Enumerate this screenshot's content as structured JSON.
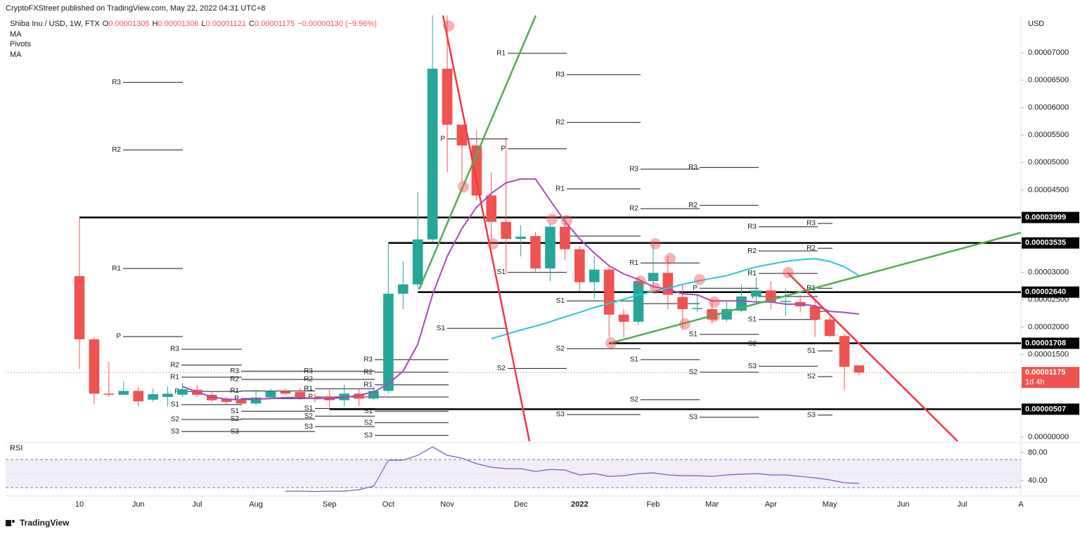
{
  "header": {
    "published": "CryptoFXStreet published on TradingView.com, May 22, 2022 04:31 UTC+8",
    "legend": [
      {
        "key": "O",
        "text": "0.00001305"
      },
      {
        "key": "H",
        "text": "0.00001306"
      },
      {
        "key": "L",
        "text": "0.00001121"
      },
      {
        "key": "C",
        "text": "0.00001175"
      }
    ],
    "change": "−0.00000130 (−9.96%)",
    "indicator": "Pivots"
  },
  "branding": "TradingView",
  "chart_data": {
    "type": "candlestick",
    "title": "Shiba Inu / USD, 1W, FTX",
    "categories": [
      "10",
      null,
      null,
      null,
      "Jun",
      null,
      null,
      null,
      "Jul",
      null,
      null,
      null,
      "Aug",
      null,
      null,
      null,
      null,
      "Sep",
      null,
      null,
      null,
      "Oct",
      null,
      null,
      null,
      "Nov",
      null,
      null,
      null,
      null,
      "Dec",
      null,
      null,
      null,
      "2022",
      null,
      null,
      null,
      null,
      "Feb",
      null,
      null,
      null,
      "Mar",
      null,
      null,
      null,
      "Apr",
      null,
      null,
      null,
      "May",
      null,
      null,
      null,
      null,
      "Jun",
      null,
      null,
      null,
      "Jul",
      null,
      null,
      null,
      "A"
    ],
    "open": [
      2.93e-05,
      1.78e-05,
      7.9e-06,
      7.7e-06,
      8.4e-06,
      6.8e-06,
      7.3e-06,
      7.7e-06,
      8.6e-06,
      7.7e-06,
      6.9e-06,
      6.7e-06,
      6.1e-06,
      7.2e-06,
      8.4e-06,
      8.2e-06,
      7.2e-06,
      7.4e-06,
      6.7e-06,
      7.9e-06,
      7e-06,
      8.4e-06,
      2.61e-05,
      2.78e-05,
      3.6e-05,
      6.71e-05,
      5.69e-05,
      5.31e-05,
      4.4e-05,
      3.92e-05,
      3.61e-05,
      3.66e-05,
      3.07e-05,
      3.83e-05,
      3.42e-05,
      2.82e-05,
      3.05e-05,
      2.23e-05,
      2.1e-05,
      2.84e-05,
      2.99e-05,
      2.55e-05,
      2.33e-05,
      2.33e-05,
      2.14e-05,
      2.3e-05,
      2.56e-05,
      2.67e-05,
      2.46e-05,
      2.46e-05,
      2.38e-05,
      2.14e-05,
      1.84e-05,
      1.305e-05,
      null,
      null,
      null,
      null,
      null,
      null,
      null,
      null,
      null,
      null,
      null
    ],
    "high": [
      3.98e-05,
      1.82e-05,
      1.37e-05,
      1.02e-05,
      9.2e-06,
      8.8e-06,
      9.2e-06,
      9.9e-06,
      9.5e-06,
      8.4e-06,
      7.3e-06,
      7.2e-06,
      8.6e-06,
      8.8e-06,
      8.8e-06,
      9e-06,
      7.9e-06,
      8.6e-06,
      9.5e-06,
      8.8e-06,
      9.2e-06,
      3.54e-05,
      3.2e-05,
      4.47e-05,
      7.68e-05,
      7.68e-05,
      5.69e-05,
      5.59e-05,
      4.82e-05,
      5.46e-05,
      3.86e-05,
      3.74e-05,
      3.89e-05,
      3.97e-05,
      3.48e-05,
      3.29e-05,
      3.1e-05,
      2.33e-05,
      2.91e-05,
      3.54e-05,
      3.29e-05,
      2.78e-05,
      2.59e-05,
      2.52e-05,
      2.46e-05,
      2.78e-05,
      2.91e-05,
      2.84e-05,
      2.71e-05,
      2.59e-05,
      2.52e-05,
      2.2e-05,
      1.88e-05,
      1.306e-05,
      null,
      null,
      null,
      null,
      null,
      null,
      null,
      null,
      null,
      null,
      null
    ],
    "low": [
      1.24e-05,
      6e-06,
      7.3e-06,
      7.7e-06,
      5.6e-06,
      6.4e-06,
      5.6e-06,
      7.3e-06,
      7.3e-06,
      6.4e-06,
      6e-06,
      5.8e-06,
      5.9e-06,
      6.9e-06,
      7.7e-06,
      6.7e-06,
      6.4e-06,
      5.4e-06,
      5.6e-06,
      5.6e-06,
      6.7e-06,
      7.9e-06,
      2.33e-05,
      2.71e-05,
      3.54e-05,
      4.82e-05,
      4.63e-05,
      4.31e-05,
      3.61e-05,
      2.97e-05,
      3.29e-05,
      3.01e-05,
      2.84e-05,
      3.23e-05,
      2.65e-05,
      2.52e-05,
      1.82e-05,
      1.82e-05,
      2.05e-05,
      2.71e-05,
      2.33e-05,
      1.95e-05,
      2.27e-05,
      2.07e-05,
      2.1e-05,
      2.27e-05,
      2.46e-05,
      2.33e-05,
      2.2e-05,
      2.27e-05,
      1.82e-05,
      1.82e-05,
      8.6e-06,
      1.121e-05,
      null,
      null,
      null,
      null,
      null,
      null,
      null,
      null,
      null,
      null,
      null
    ],
    "close": [
      1.78e-05,
      7.9e-06,
      7.7e-06,
      8.4e-06,
      6.5e-06,
      7.8e-06,
      7.9e-06,
      8.7e-06,
      7.7e-06,
      6.7e-06,
      6.4e-06,
      6.1e-06,
      7.2e-06,
      8.4e-06,
      7.9e-06,
      7.2e-06,
      6.9e-06,
      6.7e-06,
      7.9e-06,
      7e-06,
      8.4e-06,
      2.61e-05,
      2.78e-05,
      3.6e-05,
      6.71e-05,
      5.69e-05,
      5.31e-05,
      4.4e-05,
      3.92e-05,
      3.61e-05,
      3.65e-05,
      3.07e-05,
      3.83e-05,
      3.42e-05,
      2.82e-05,
      3.05e-05,
      2.23e-05,
      2.1e-05,
      2.84e-05,
      2.99e-05,
      2.59e-05,
      2.33e-05,
      2.35e-05,
      2.14e-05,
      2.33e-05,
      2.56e-05,
      2.67e-05,
      2.46e-05,
      2.48e-05,
      2.38e-05,
      2.14e-05,
      1.84e-05,
      1.28e-05,
      1.175e-05,
      null,
      null,
      null,
      null,
      null,
      null,
      null,
      null,
      null,
      null,
      null
    ],
    "up_color": "#26a69a",
    "down_color": "#ef5350",
    "series": [
      {
        "name": "MA",
        "color": "#ab47bc",
        "values": [
          null,
          null,
          null,
          null,
          null,
          null,
          null,
          9.2e-06,
          8.2e-06,
          7.3e-06,
          6.9e-06,
          6.8e-06,
          6.9e-06,
          7e-06,
          7.2e-06,
          7.2e-06,
          7e-06,
          7e-06,
          7.2e-06,
          7.6e-06,
          8.2e-06,
          9.7e-06,
          1.2e-05,
          1.69e-05,
          2.59e-05,
          3.29e-05,
          3.8e-05,
          4.19e-05,
          4.44e-05,
          4.63e-05,
          4.7e-05,
          4.7e-05,
          4.31e-05,
          3.93e-05,
          3.61e-05,
          3.35e-05,
          3.12e-05,
          2.97e-05,
          2.87e-05,
          2.74e-05,
          2.69e-05,
          2.61e-05,
          2.59e-05,
          2.48e-05,
          2.48e-05,
          2.48e-05,
          2.46e-05,
          2.46e-05,
          2.42e-05,
          2.42e-05,
          2.39e-05,
          2.29e-05,
          2.27e-05,
          2.24e-05,
          null,
          null,
          null,
          null,
          null,
          null,
          null,
          null,
          null,
          null,
          null
        ]
      },
      {
        "name": "MA",
        "color": "#26c6da",
        "values": [
          null,
          null,
          null,
          null,
          null,
          null,
          null,
          null,
          null,
          null,
          null,
          null,
          null,
          null,
          null,
          null,
          null,
          null,
          null,
          null,
          null,
          null,
          null,
          null,
          null,
          null,
          null,
          null,
          1.79e-05,
          1.87e-05,
          1.95e-05,
          2.02e-05,
          2.1e-05,
          2.19e-05,
          2.27e-05,
          2.36e-05,
          2.43e-05,
          2.51e-05,
          2.59e-05,
          2.65e-05,
          2.71e-05,
          2.78e-05,
          2.84e-05,
          2.89e-05,
          2.94e-05,
          3.02e-05,
          3.1e-05,
          3.15e-05,
          3.2e-05,
          3.23e-05,
          3.25e-05,
          3.2e-05,
          3.1e-05,
          2.94e-05,
          null,
          null,
          null,
          null,
          null,
          null,
          null,
          null,
          null,
          null,
          null
        ]
      }
    ],
    "ylim": [
      -7.7e-07,
      7.679e-05
    ],
    "y_axis_label": "USD",
    "yticks": [
      {
        "value": 0,
        "label": "0.00000000"
      },
      {
        "value": 1.5e-05,
        "label": "0.00001500"
      },
      {
        "value": 2e-05,
        "label": "0.00002000"
      },
      {
        "value": 2.5e-05,
        "label": "0.00002500"
      },
      {
        "value": 3e-05,
        "label": "0.00003000"
      },
      {
        "value": 4.5e-05,
        "label": "0.00004500"
      },
      {
        "value": 5e-05,
        "label": "0.00005000"
      },
      {
        "value": 5.5e-05,
        "label": "0.00005500"
      },
      {
        "value": 6e-05,
        "label": "0.00006000"
      },
      {
        "value": 6.5e-05,
        "label": "0.00006500"
      },
      {
        "value": 7e-05,
        "label": "0.00007000"
      }
    ],
    "levels": [
      {
        "value": 3.999e-05,
        "label": "0.00003999"
      },
      {
        "value": 3.535e-05,
        "label": "0.00003535"
      },
      {
        "value": 2.64e-05,
        "label": "0.00002640"
      },
      {
        "value": 1.708e-05,
        "label": "0.00001708"
      },
      {
        "value": 5.07e-06,
        "label": "0.00000507"
      }
    ],
    "last_price": {
      "value": 1.175e-05,
      "label": "0.00001175",
      "countdown": "1d 4h",
      "color": "#ef5350"
    },
    "pivots": [
      {
        "levels": [
          {
            "label": "R3",
            "value": 6.46e-05
          },
          {
            "label": "R2",
            "value": 5.23e-05
          },
          {
            "label": "R1",
            "value": 3.07e-05
          },
          {
            "label": "P",
            "value": 1.83e-05
          }
        ]
      },
      {
        "levels": [
          {
            "label": "R3",
            "value": 1.6e-05
          },
          {
            "label": "R2",
            "value": 1.31e-05
          },
          {
            "label": "R1",
            "value": 1.09e-05
          },
          {
            "label": "P",
            "value": 8.3e-06
          },
          {
            "label": "S1",
            "value": 5.9e-06
          },
          {
            "label": "S2",
            "value": 3.2e-06
          },
          {
            "label": "S3",
            "value": 1e-06
          }
        ]
      },
      {
        "levels": [
          {
            "label": "R3",
            "value": 1.2e-05
          },
          {
            "label": "R2",
            "value": 1.05e-05
          },
          {
            "label": "R1",
            "value": 8.4e-06
          },
          {
            "label": "P",
            "value": 7e-06
          },
          {
            "label": "S1",
            "value": 4.7e-06
          },
          {
            "label": "S2",
            "value": 3.3e-06
          },
          {
            "label": "S3",
            "value": 1e-06
          }
        ]
      },
      {
        "levels": [
          {
            "label": "R3",
            "value": 1.2e-05
          },
          {
            "label": "R2",
            "value": 1.05e-05
          },
          {
            "label": "R1",
            "value": 8.8e-06
          },
          {
            "label": "P",
            "value": 7.3e-06
          },
          {
            "label": "S1",
            "value": 5.2e-06
          },
          {
            "label": "S2",
            "value": 3.8e-06
          },
          {
            "label": "S3",
            "value": 1.9e-06
          }
        ]
      },
      {
        "levels": [
          {
            "label": "R3",
            "value": 1.41e-05
          },
          {
            "label": "R2",
            "value": 1.18e-05
          },
          {
            "label": "R1",
            "value": 9.5e-06
          },
          {
            "label": "P",
            "value": 7.3e-06
          },
          {
            "label": "S1",
            "value": 4.7e-06
          },
          {
            "label": "S2",
            "value": 2.6e-06
          },
          {
            "label": "S3",
            "value": 3e-07
          }
        ]
      },
      {
        "levels": [
          {
            "label": "P",
            "value": 5.43e-05
          },
          {
            "label": "S1",
            "value": 1.98e-05
          }
        ]
      },
      {
        "levels": [
          {
            "label": "R1",
            "value": 6.99e-05
          },
          {
            "label": "P",
            "value": 5.25e-05
          },
          {
            "label": "S1",
            "value": 3e-05
          },
          {
            "label": "S2",
            "value": 1.25e-05
          }
        ]
      },
      {
        "levels": [
          {
            "label": "R3",
            "value": 6.6e-05
          },
          {
            "label": "R2",
            "value": 5.73e-05
          },
          {
            "label": "R1",
            "value": 4.52e-05
          },
          {
            "label": "P",
            "value": 3.66e-05
          },
          {
            "label": "S1",
            "value": 2.48e-05
          },
          {
            "label": "S2",
            "value": 1.61e-05
          },
          {
            "label": "S3",
            "value": 4.1e-06
          }
        ]
      },
      {
        "levels": [
          {
            "label": "R3",
            "value": 4.88e-05
          },
          {
            "label": "R2",
            "value": 4.16e-05
          },
          {
            "label": "R1",
            "value": 3.17e-05
          },
          {
            "label": "P",
            "value": 2.43e-05
          },
          {
            "label": "S1",
            "value": 1.41e-05
          },
          {
            "label": "S2",
            "value": 6.8e-06
          }
        ]
      },
      {
        "levels": [
          {
            "label": "R3",
            "value": 4.91e-05
          },
          {
            "label": "R2",
            "value": 4.22e-05
          },
          {
            "label": "P",
            "value": 2.71e-05
          },
          {
            "label": "S1",
            "value": 1.87e-05
          },
          {
            "label": "S2",
            "value": 1.18e-05
          },
          {
            "label": "S3",
            "value": 3.6e-06
          }
        ]
      },
      {
        "levels": [
          {
            "label": "R3",
            "value": 3.83e-05
          },
          {
            "label": "R2",
            "value": 3.39e-05
          },
          {
            "label": "R1",
            "value": 2.98e-05
          },
          {
            "label": "P",
            "value": 2.56e-05
          },
          {
            "label": "S1",
            "value": 2.14e-05
          },
          {
            "label": "S2",
            "value": 1.7e-05
          },
          {
            "label": "S3",
            "value": 1.29e-05
          }
        ]
      },
      {
        "levels": [
          {
            "label": "R3",
            "value": 3.89e-05
          },
          {
            "label": "R2",
            "value": 3.44e-05
          },
          {
            "label": "R1",
            "value": 2.71e-05
          },
          {
            "label": "P",
            "value": 2.29e-05
          },
          {
            "label": "S1",
            "value": 1.57e-05
          },
          {
            "label": "S2",
            "value": 1.1e-05
          },
          {
            "label": "S3",
            "value": 4e-06
          }
        ]
      }
    ],
    "rsi": {
      "name": "RSI",
      "color": "#7e57c2",
      "values": [
        null,
        null,
        null,
        null,
        null,
        null,
        null,
        null,
        null,
        null,
        null,
        null,
        null,
        null,
        25,
        25,
        24.5,
        25,
        25,
        27,
        32,
        69,
        69,
        76,
        88,
        76,
        72,
        64,
        59,
        57,
        57,
        53,
        56,
        55,
        48,
        50,
        46,
        47,
        50,
        51,
        48,
        47,
        47,
        46,
        48,
        49,
        50,
        48,
        48,
        46,
        44,
        41,
        37,
        36,
        null,
        null,
        null,
        null,
        null,
        null,
        null,
        null,
        null,
        null,
        null
      ],
      "ylim": [
        18,
        94
      ],
      "yticks": [
        {
          "value": 40,
          "label": "40.00"
        },
        {
          "value": 80,
          "label": "80.00"
        }
      ],
      "band": [
        30,
        70
      ],
      "midline": 50
    }
  }
}
